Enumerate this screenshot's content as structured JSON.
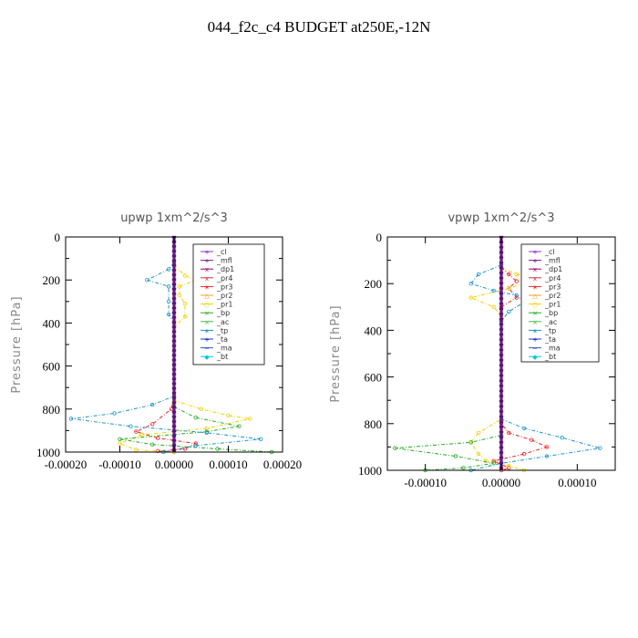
{
  "title": "044_f2c_c4  BUDGET at250E,-12N",
  "chart_data": [
    {
      "type": "line",
      "title": "upwp   1xm^2/s^3",
      "ylabel": "Pressure [hPa]",
      "xlim": [
        -0.0002,
        0.0002
      ],
      "ylim": [
        1000,
        0
      ],
      "y_inverted": true,
      "xticks": [
        "-0.00020",
        "-0.00010",
        "0.00000",
        "0.00010",
        "0.00020"
      ],
      "xtick_values": [
        -0.0002,
        -0.0001,
        0,
        0.0001,
        0.0002
      ],
      "yticks": [
        0,
        200,
        400,
        600,
        800,
        1000
      ],
      "legend_position": "top-right",
      "series": [
        {
          "name": "_cl",
          "color": "#9933cc",
          "points": [
            [
              0,
              0
            ],
            [
              0,
              1000
            ]
          ]
        },
        {
          "name": "_mfl",
          "color": "#7a1e9c",
          "points": [
            [
              0,
              0
            ],
            [
              0,
              1000
            ]
          ]
        },
        {
          "name": "_dp1",
          "color": "#990066",
          "points": [
            [
              0,
              0
            ],
            [
              0,
              1000
            ]
          ]
        },
        {
          "name": "_pr4",
          "color": "#cc3344",
          "points": [
            [
              0,
              0
            ],
            [
              0,
              1000
            ]
          ]
        },
        {
          "name": "_pr3",
          "color": "#ee2222",
          "points": [
            [
              0,
              740
            ],
            [
              -5e-06,
              800
            ],
            [
              -4e-05,
              870
            ],
            [
              -7e-05,
              905
            ],
            [
              -3e-05,
              935
            ],
            [
              4e-05,
              960
            ],
            [
              2e-05,
              985
            ],
            [
              -3e-05,
              995
            ],
            [
              0,
              1000
            ]
          ]
        },
        {
          "name": "_pr2",
          "color": "#f0a020",
          "points": [
            [
              0,
              0
            ],
            [
              0,
              1000
            ]
          ]
        },
        {
          "name": "_pr1",
          "color": "#f2d000",
          "points": [
            [
              0,
              130
            ],
            [
              2e-05,
              180
            ],
            [
              4e-05,
              200
            ],
            [
              1e-05,
              230
            ],
            [
              1e-05,
              270
            ],
            [
              2e-05,
              310
            ],
            [
              2e-05,
              370
            ],
            [
              0,
              420
            ],
            [
              0,
              760
            ],
            [
              5e-05,
              800
            ],
            [
              0.0001,
              830
            ],
            [
              0.00014,
              845
            ],
            [
              6e-05,
              890
            ],
            [
              -6e-05,
              920
            ],
            [
              -0.0001,
              960
            ],
            [
              -7e-05,
              990
            ],
            [
              0,
              1000
            ]
          ]
        },
        {
          "name": "_bp",
          "color": "#22aa22",
          "points": [
            [
              0,
              790
            ],
            [
              4e-05,
              840
            ],
            [
              0.00012,
              880
            ],
            [
              6e-05,
              905
            ],
            [
              -0.0001,
              940
            ],
            [
              -4e-05,
              965
            ],
            [
              8e-05,
              985
            ],
            [
              0.00018,
              1000
            ]
          ]
        },
        {
          "name": "_ac",
          "color": "#44bb44",
          "points": [
            [
              0,
              0
            ],
            [
              0,
              1000
            ]
          ]
        },
        {
          "name": "_tp",
          "color": "#1a93c8",
          "points": [
            [
              0,
              120
            ],
            [
              -1e-05,
              150
            ],
            [
              -5e-05,
              200
            ],
            [
              -1e-05,
              230
            ],
            [
              -1e-05,
              300
            ],
            [
              -1e-05,
              360
            ],
            [
              0,
              400
            ],
            [
              0,
              740
            ],
            [
              -4e-05,
              780
            ],
            [
              -0.00011,
              820
            ],
            [
              -0.00019,
              845
            ],
            [
              -8e-05,
              880
            ],
            [
              6e-05,
              910
            ],
            [
              0.00016,
              940
            ],
            [
              4e-05,
              970
            ],
            [
              -2e-05,
              1000
            ]
          ]
        },
        {
          "name": "_ta",
          "color": "#2233cc",
          "points": [
            [
              0,
              0
            ],
            [
              0,
              1000
            ]
          ]
        },
        {
          "name": "_ma",
          "color": "#3355bb",
          "points": [
            [
              0,
              0
            ],
            [
              0,
              1000
            ]
          ]
        },
        {
          "name": "_bt",
          "color": "#00c8dc",
          "points": [
            [
              0,
              0
            ],
            [
              0,
              1000
            ]
          ]
        }
      ]
    },
    {
      "type": "line",
      "title": "vpwp   1xm^2/s^3",
      "ylabel": "Pressure [hPa]",
      "xlim": [
        -0.00015,
        0.00015
      ],
      "ylim": [
        1000,
        0
      ],
      "y_inverted": true,
      "xticks": [
        "-0.00010",
        "0.00000",
        "0.00010"
      ],
      "xtick_values": [
        -0.0001,
        0,
        0.0001
      ],
      "yticks": [
        0,
        200,
        400,
        600,
        800,
        1000
      ],
      "legend_position": "top-right",
      "series": [
        {
          "name": "_cl",
          "color": "#9933cc",
          "points": [
            [
              0,
              0
            ],
            [
              0,
              1000
            ]
          ]
        },
        {
          "name": "_mfl",
          "color": "#7a1e9c",
          "points": [
            [
              0,
              0
            ],
            [
              0,
              1000
            ]
          ]
        },
        {
          "name": "_dp1",
          "color": "#990066",
          "points": [
            [
              0,
              0
            ],
            [
              0,
              1000
            ]
          ]
        },
        {
          "name": "_pr4",
          "color": "#cc3344",
          "points": [
            [
              0,
              0
            ],
            [
              0,
              1000
            ]
          ]
        },
        {
          "name": "_pr3",
          "color": "#ee2222",
          "points": [
            [
              0,
              130
            ],
            [
              1e-05,
              160
            ],
            [
              2e-05,
              190
            ],
            [
              1e-05,
              220
            ],
            [
              2e-05,
              260
            ],
            [
              0,
              300
            ],
            [
              0,
              800
            ],
            [
              1e-05,
              840
            ],
            [
              4e-05,
              870
            ],
            [
              6e-05,
              900
            ],
            [
              3e-05,
              930
            ],
            [
              -1e-05,
              960
            ],
            [
              1e-05,
              990
            ],
            [
              0,
              1000
            ]
          ]
        },
        {
          "name": "_pr2",
          "color": "#f0a020",
          "points": [
            [
              0,
              0
            ],
            [
              0,
              1000
            ]
          ]
        },
        {
          "name": "_pr1",
          "color": "#f2d000",
          "points": [
            [
              0,
              130
            ],
            [
              2e-05,
              160
            ],
            [
              4e-05,
              190
            ],
            [
              1e-05,
              220
            ],
            [
              -4e-05,
              260
            ],
            [
              -1e-05,
              300
            ],
            [
              0,
              340
            ],
            [
              0,
              780
            ],
            [
              -3e-05,
              840
            ],
            [
              -4e-05,
              880
            ],
            [
              -3e-05,
              930
            ],
            [
              -2e-05,
              960
            ],
            [
              1e-05,
              980
            ],
            [
              3e-05,
              1000
            ]
          ]
        },
        {
          "name": "_bp",
          "color": "#22aa22",
          "points": [
            [
              0,
              850
            ],
            [
              -4e-05,
              880
            ],
            [
              -0.00014,
              905
            ],
            [
              -6e-05,
              940
            ],
            [
              -1e-05,
              970
            ],
            [
              -5e-05,
              990
            ],
            [
              -0.0001,
              1000
            ]
          ]
        },
        {
          "name": "_ac",
          "color": "#44bb44",
          "points": [
            [
              0,
              0
            ],
            [
              0,
              1000
            ]
          ]
        },
        {
          "name": "_tp",
          "color": "#1a93c8",
          "points": [
            [
              0,
              120
            ],
            [
              -3e-05,
              160
            ],
            [
              -4e-05,
              200
            ],
            [
              -1e-05,
              230
            ],
            [
              2e-05,
              250
            ],
            [
              3e-05,
              280
            ],
            [
              1e-05,
              320
            ],
            [
              0,
              360
            ],
            [
              0,
              780
            ],
            [
              3e-05,
              820
            ],
            [
              8e-05,
              860
            ],
            [
              0.00013,
              905
            ],
            [
              6e-05,
              940
            ],
            [
              0,
              970
            ],
            [
              -4e-05,
              1000
            ]
          ]
        },
        {
          "name": "_ta",
          "color": "#2233cc",
          "points": [
            [
              0,
              0
            ],
            [
              0,
              1000
            ]
          ]
        },
        {
          "name": "_ma",
          "color": "#3355bb",
          "points": [
            [
              0,
              0
            ],
            [
              0,
              1000
            ]
          ]
        },
        {
          "name": "_bt",
          "color": "#00c8dc",
          "points": [
            [
              0,
              0
            ],
            [
              0,
              1000
            ]
          ]
        }
      ]
    }
  ]
}
